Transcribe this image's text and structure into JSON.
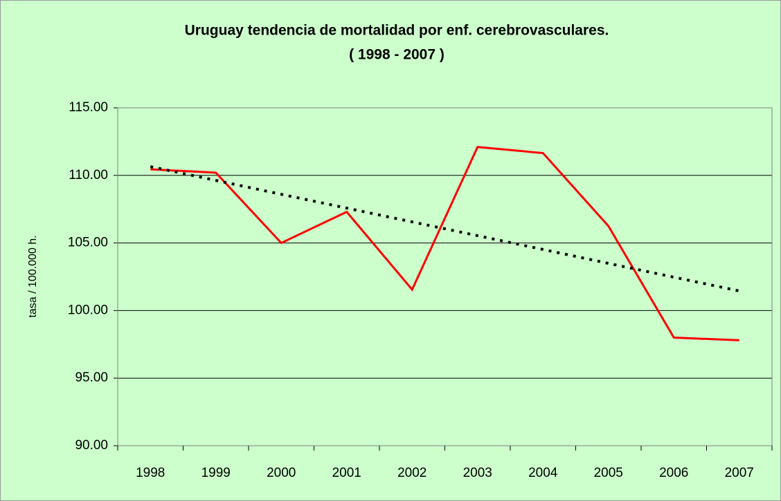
{
  "chart_data": {
    "type": "line",
    "title": [
      "Uruguay tendencia de mortalidad por enf. cerebrovasculares.",
      "( 1998 - 2007 )"
    ],
    "y_label": "tasa / 100.000 h.",
    "categories": [
      "1998",
      "1999",
      "2000",
      "2001",
      "2002",
      "2003",
      "2004",
      "2005",
      "2006",
      "2007"
    ],
    "series": [
      {
        "color": "#ff0000",
        "style": "solid",
        "values": [
          110.45,
          110.2,
          105.0,
          107.3,
          101.55,
          112.1,
          111.65,
          106.25,
          98.0,
          97.8
        ]
      },
      {
        "color": "#000000",
        "style": "dotted",
        "values": [
          110.65,
          109.63,
          108.6,
          107.58,
          106.56,
          105.54,
          104.52,
          103.49,
          102.47,
          101.45
        ]
      }
    ],
    "ylim": [
      90,
      115
    ],
    "yticks": [
      {
        "value": 90,
        "label": "90.00"
      },
      {
        "value": 95,
        "label": "95.00"
      },
      {
        "value": 100,
        "label": "100.00"
      },
      {
        "value": 105,
        "label": "105.00"
      },
      {
        "value": 110,
        "label": "110.00"
      },
      {
        "value": 115,
        "label": "115.00"
      }
    ],
    "grid": true,
    "background": "#ccffcc"
  }
}
